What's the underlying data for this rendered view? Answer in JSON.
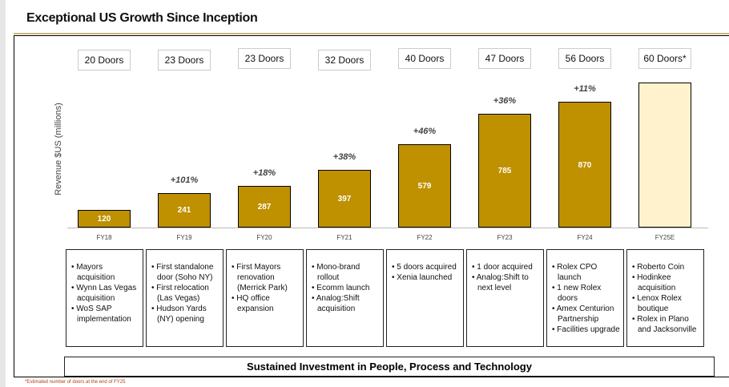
{
  "title": "Exceptional US Growth Since Inception",
  "footnote": "*Estimated number of doors at the end of FY25",
  "bottom_banner": "Sustained Investment in People, Process and Technology",
  "colors": {
    "bar": "#bf9000",
    "estimate_bar": "#fff2cc",
    "accent_line": "#c9b77a"
  },
  "chart_data": {
    "type": "bar",
    "ylabel": "Revenue $US (millions)",
    "categories": [
      "FY18",
      "FY19",
      "FY20",
      "FY21",
      "FY22",
      "FY23",
      "FY24",
      "FY25E"
    ],
    "values": [
      120,
      241,
      287,
      397,
      579,
      785,
      870,
      null
    ],
    "growth": [
      "",
      "+101%",
      "+18%",
      "+38%",
      "+46%",
      "+36%",
      "+11%",
      ""
    ],
    "doors": [
      "20 Doors",
      "23 Doors",
      "23 Doors",
      "32 Doors",
      "40 Doors",
      "47 Doors",
      "56 Doors",
      "60 Doors*"
    ]
  },
  "milestones": [
    [
      "Mayors acquisition",
      "Wynn Las Vegas acquisition",
      "WoS SAP implementation"
    ],
    [
      "First standalone door (Soho NY)",
      "First relocation (Las Vegas)",
      "Hudson Yards (NY) opening"
    ],
    [
      "First Mayors renovation (Merrick Park)",
      "HQ office expansion"
    ],
    [
      "Mono-brand rollout",
      "Ecomm launch",
      "Analog:Shift acquisition"
    ],
    [
      "5 doors acquired",
      "Xenia launched"
    ],
    [
      "1 door acquired",
      "Analog:Shift to next level"
    ],
    [
      "Rolex CPO launch",
      "1 new Rolex doors",
      "Amex Centurion Partnership",
      "Facilities upgrade"
    ],
    [
      "Roberto Coin",
      "Hodinkee acquisition",
      "Lenox Rolex boutique",
      "Rolex in Plano and Jacksonville"
    ]
  ]
}
